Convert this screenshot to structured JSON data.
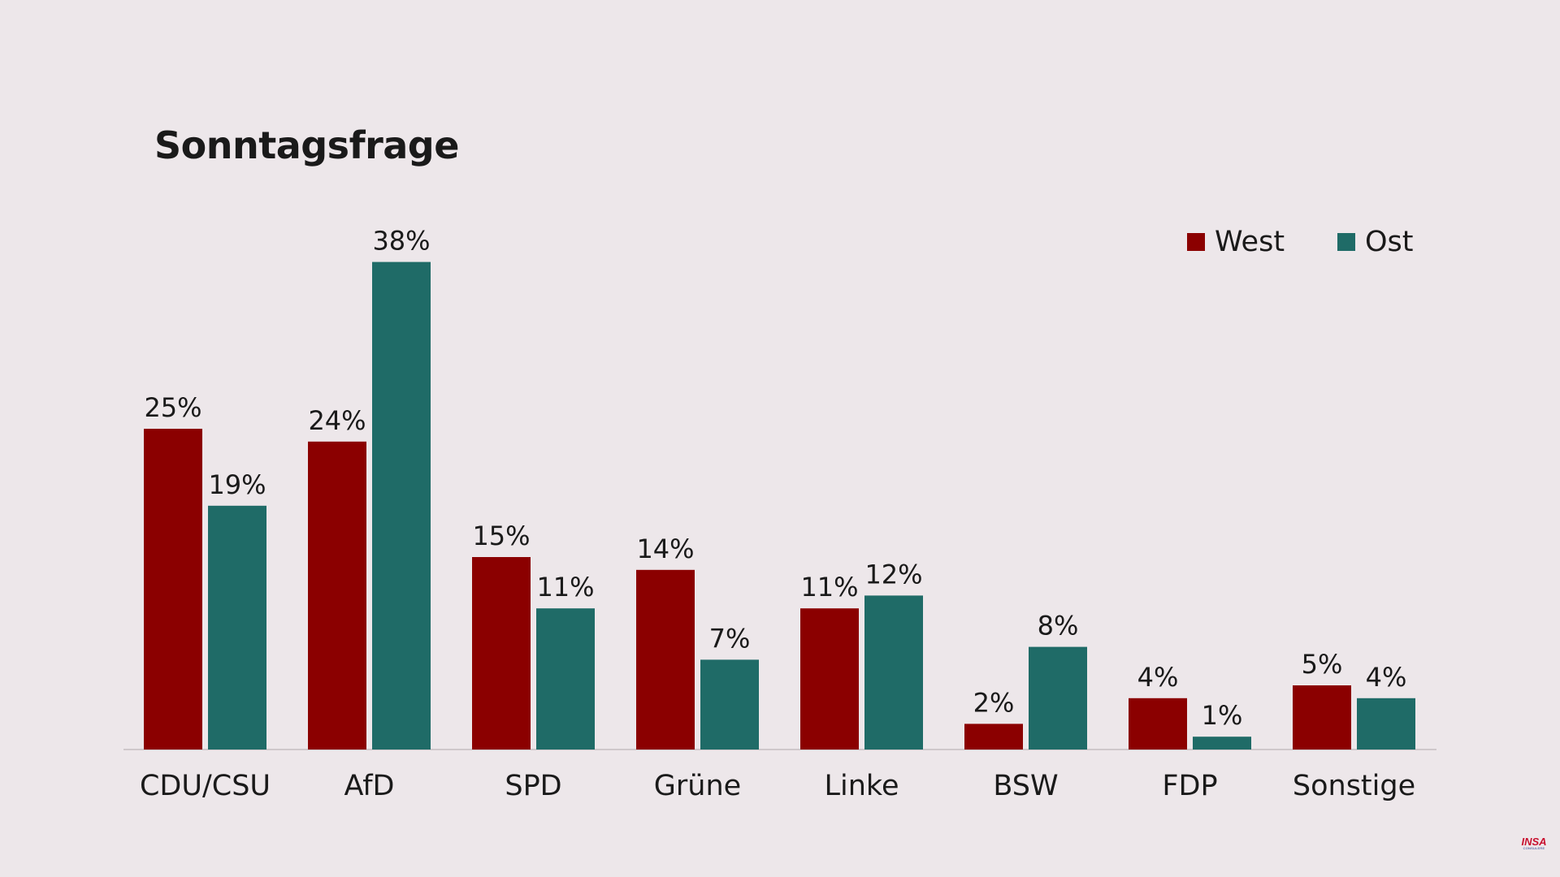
{
  "chart_data": {
    "type": "bar",
    "title": "Sonntagsfrage",
    "xlabel": "",
    "ylabel": "",
    "categories": [
      "CDU/CSU",
      "AfD",
      "SPD",
      "Grüne",
      "Linke",
      "BSW",
      "FDP",
      "Sonstige"
    ],
    "series": [
      {
        "name": "West",
        "color": "#8b0000",
        "values": [
          25,
          24,
          15,
          14,
          11,
          2,
          4,
          5
        ]
      },
      {
        "name": "Ost",
        "color": "#1f6b67",
        "values": [
          19,
          38,
          11,
          7,
          12,
          8,
          1,
          4
        ]
      }
    ],
    "value_suffix": "%",
    "ylim": [
      0,
      38
    ],
    "grid": false,
    "legend_position": "top-right"
  },
  "legend": {
    "west_label": "West",
    "ost_label": "Ost"
  },
  "brand": {
    "logo_text": "INSA",
    "logo_subtext": "CONSULERE"
  }
}
